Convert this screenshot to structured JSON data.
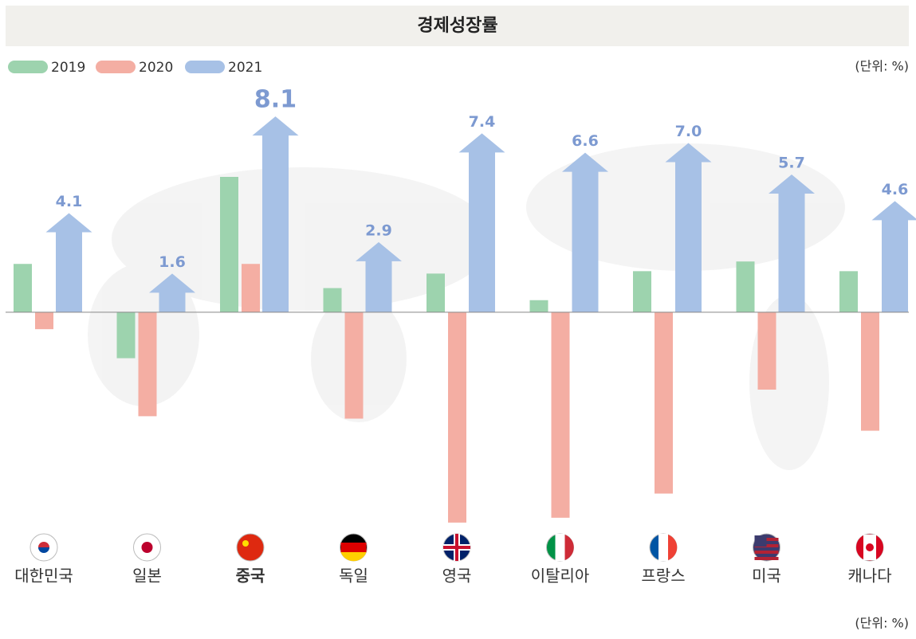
{
  "chart_data": {
    "type": "bar",
    "title": "경제성장률",
    "unit_label": "(단위: %)",
    "footer_unit_label": "(단위: %)",
    "categories": [
      "대한민국",
      "일본",
      "중국",
      "독일",
      "영국",
      "이탈리아",
      "프랑스",
      "미국",
      "캐나다"
    ],
    "series": [
      {
        "name": "2019",
        "color": "#9dd3ae",
        "values": [
          2.0,
          -1.9,
          5.6,
          1.0,
          1.6,
          0.5,
          1.7,
          2.1,
          1.7
        ]
      },
      {
        "name": "2020",
        "color": "#f4aea3",
        "values": [
          -0.7,
          -4.3,
          2.0,
          -4.4,
          -8.7,
          -8.5,
          -7.5,
          -3.2,
          -4.9
        ]
      },
      {
        "name": "2021",
        "color": "#a7c1e6",
        "values": [
          4.1,
          1.6,
          8.1,
          2.9,
          7.4,
          6.6,
          7.0,
          5.7,
          4.6
        ],
        "value_labels": [
          "4.1",
          "1.6",
          "8.1",
          "2.9",
          "7.4",
          "6.6",
          "7.0",
          "5.7",
          "4.6"
        ]
      }
    ],
    "ylim": [
      -9,
      8.5
    ],
    "legend": "top-left"
  }
}
